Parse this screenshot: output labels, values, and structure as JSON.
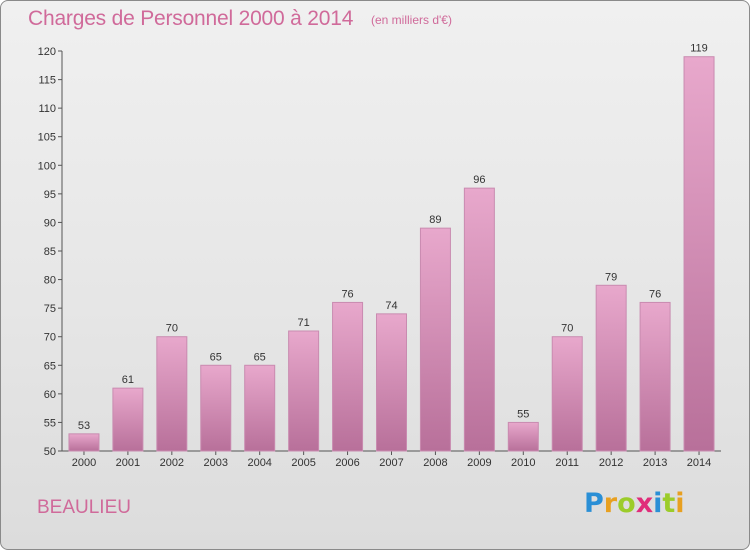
{
  "header": {
    "title": "Charges de Personnel 2000 à 2014",
    "subtitle": "(en milliers d'€)"
  },
  "footer": {
    "place": "BEAULIEU",
    "logo_text": "Proxiti",
    "logo_letters": [
      {
        "ch": "P",
        "color": "#2a8fd6"
      },
      {
        "ch": "r",
        "color": "#e8a020"
      },
      {
        "ch": "o",
        "color": "#9ccc2a"
      },
      {
        "ch": "x",
        "color": "#e02d7a"
      },
      {
        "ch": "i",
        "color": "#2a8fd6"
      },
      {
        "ch": "t",
        "color": "#9ccc2a"
      },
      {
        "ch": "i",
        "color": "#e8a020"
      }
    ]
  },
  "colors": {
    "accent": "#d06a9a",
    "bar_top": "#e8a8cc",
    "bar_bottom": "#b8709a",
    "bar_stroke": "#c98bb0"
  },
  "chart_data": {
    "type": "bar",
    "title": "Charges de Personnel 2000 à 2014",
    "subtitle": "(en milliers d'€)",
    "categories": [
      "2000",
      "2001",
      "2002",
      "2003",
      "2004",
      "2005",
      "2006",
      "2007",
      "2008",
      "2009",
      "2010",
      "2011",
      "2012",
      "2013",
      "2014"
    ],
    "values": [
      53,
      61,
      70,
      65,
      65,
      71,
      76,
      74,
      89,
      96,
      55,
      70,
      79,
      76,
      119
    ],
    "ylim": [
      50,
      120
    ],
    "yticks": [
      50,
      55,
      60,
      65,
      70,
      75,
      80,
      85,
      90,
      95,
      100,
      105,
      110,
      115,
      120
    ],
    "grid": false,
    "data_labels": true
  }
}
